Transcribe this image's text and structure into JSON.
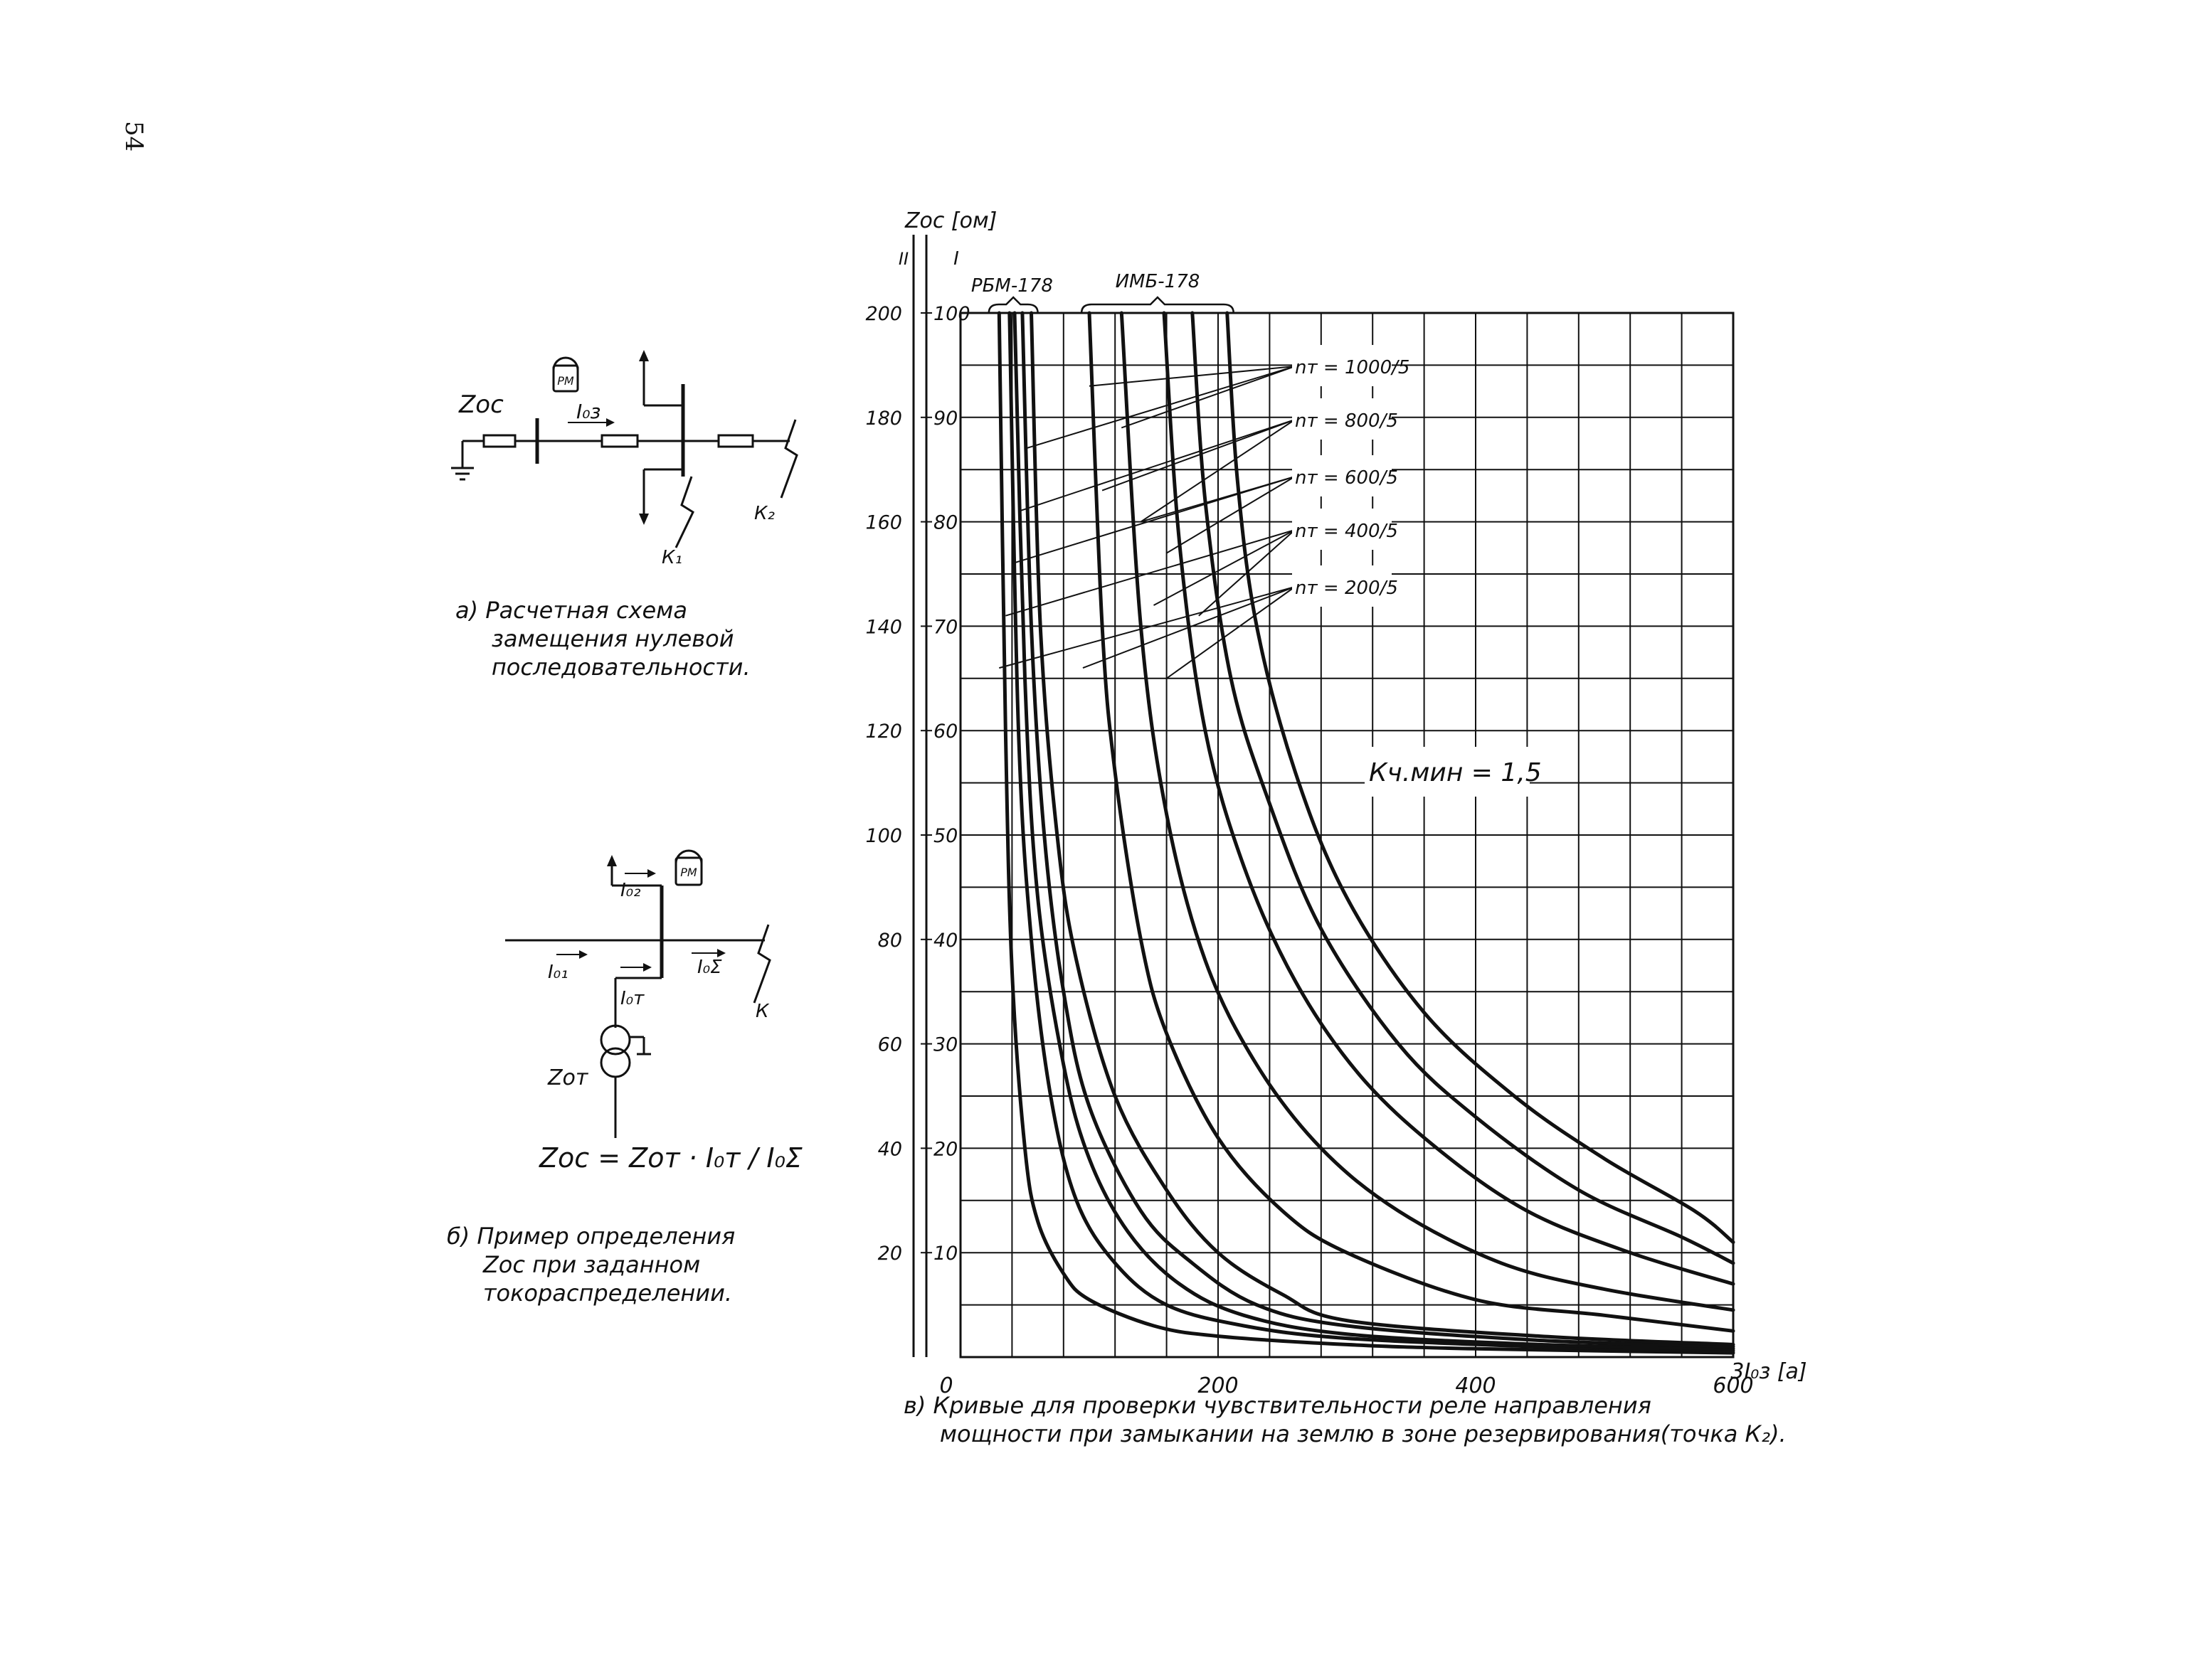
{
  "page_number": "54",
  "schema_a": {
    "caption": "а) Расчетная схема\n     замещения нулевой\n     последовательности.",
    "labels": {
      "z_oc": "Zос",
      "current": "I₀з",
      "relay": "РМ",
      "fault1": "К₁",
      "fault2": "К₂"
    }
  },
  "schema_b": {
    "caption": "б) Пример определения\n     Zос при заданном\n     токораспределении.",
    "formula": "Zос = Zот · I₀т / I₀Σ",
    "labels": {
      "i02": "I₀₂",
      "i01": "I₀₁",
      "i0s": "I₀Σ",
      "i0t": "I₀т",
      "relay": "РМ",
      "fault": "К",
      "z_ot": "Zот"
    }
  },
  "chart_caption": "в) Кривые для проверки чувствительности реле направления\n     мощности при замыкании на землю в зоне резервирования(точка К₂).",
  "chart_data": {
    "type": "line",
    "title": "",
    "xlabel": "3I₀з [а]",
    "ylabel": "Zос [ом]",
    "scale_labels": [
      "II",
      "I"
    ],
    "xlim": [
      0,
      600
    ],
    "ylim_scale_I": [
      0,
      100
    ],
    "ylim_scale_II": [
      0,
      200
    ],
    "x_ticks": [
      "0",
      "200",
      "400",
      "600"
    ],
    "y_ticks_scale_I": [
      "10",
      "20",
      "30",
      "40",
      "50",
      "60",
      "70",
      "80",
      "90",
      "100"
    ],
    "y_ticks_scale_II": [
      "20",
      "40",
      "60",
      "80",
      "100",
      "120",
      "140",
      "160",
      "180",
      "200"
    ],
    "grid": true,
    "group_labels": [
      "РБМ-178",
      "ИМБ-178"
    ],
    "annotations": {
      "k_min": "Кч.мин = 1,5",
      "nt_labels": [
        "nт = 1000/5",
        "nт = 800/5",
        "nт = 600/5",
        "nт = 400/5",
        "nт = 200/5"
      ]
    },
    "series": [
      {
        "group": "РБМ-178",
        "x": [
          30,
          35,
          40,
          50,
          60,
          80,
          100,
          150,
          200,
          300,
          400,
          600
        ],
        "y": [
          100,
          60,
          37,
          20,
          13,
          8,
          5.5,
          3,
          2,
          1.2,
          0.8,
          0.4
        ]
      },
      {
        "group": "РБМ-178",
        "x": [
          38,
          45,
          55,
          70,
          90,
          120,
          160,
          220,
          300,
          450,
          600
        ],
        "y": [
          100,
          60,
          40,
          25,
          15,
          9,
          5,
          3,
          1.8,
          1,
          0.6
        ]
      },
      {
        "group": "РБМ-178",
        "x": [
          42,
          50,
          60,
          80,
          100,
          130,
          170,
          220,
          300,
          450,
          600
        ],
        "y": [
          100,
          65,
          44,
          28,
          19,
          12,
          7,
          4,
          2.2,
          1.2,
          0.8
        ]
      },
      {
        "group": "РБМ-178",
        "x": [
          48,
          55,
          65,
          80,
          100,
          140,
          180,
          230,
          300,
          450,
          600
        ],
        "y": [
          100,
          70,
          50,
          35,
          24,
          14,
          9,
          5,
          3,
          1.6,
          1
        ]
      },
      {
        "group": "РБМ-178",
        "x": [
          55,
          62,
          75,
          90,
          120,
          160,
          200,
          250,
          300,
          450,
          600
        ],
        "y": [
          100,
          70,
          50,
          38,
          25,
          16,
          10,
          6,
          3.5,
          2,
          1.2
        ]
      },
      {
        "group": "ИМБ-178",
        "x": [
          100,
          110,
          120,
          140,
          160,
          200,
          250,
          300,
          400,
          500,
          600
        ],
        "y": [
          100,
          70,
          56,
          40,
          31,
          21,
          14,
          10,
          5.5,
          4,
          2.5
        ]
      },
      {
        "group": "ИМБ-178",
        "x": [
          125,
          140,
          160,
          190,
          230,
          280,
          340,
          420,
          500,
          600
        ],
        "y": [
          100,
          70,
          52,
          38,
          28,
          20,
          14,
          9,
          6.5,
          4.5
        ]
      },
      {
        "group": "ИМБ-178",
        "x": [
          158,
          170,
          190,
          220,
          260,
          310,
          370,
          440,
          520,
          600
        ],
        "y": [
          100,
          78,
          60,
          47,
          36,
          27,
          20,
          14,
          10,
          7
        ]
      },
      {
        "group": "ИМБ-178",
        "x": [
          180,
          190,
          210,
          240,
          280,
          340,
          400,
          480,
          560,
          600
        ],
        "y": [
          100,
          82,
          65,
          53,
          41,
          30,
          23,
          16,
          11.5,
          9
        ]
      },
      {
        "group": "ИМБ-178",
        "x": [
          207,
          215,
          230,
          260,
          300,
          360,
          430,
          500,
          570,
          600
        ],
        "y": [
          100,
          84,
          70,
          56,
          44,
          33,
          25,
          19,
          14,
          11
        ]
      }
    ]
  }
}
